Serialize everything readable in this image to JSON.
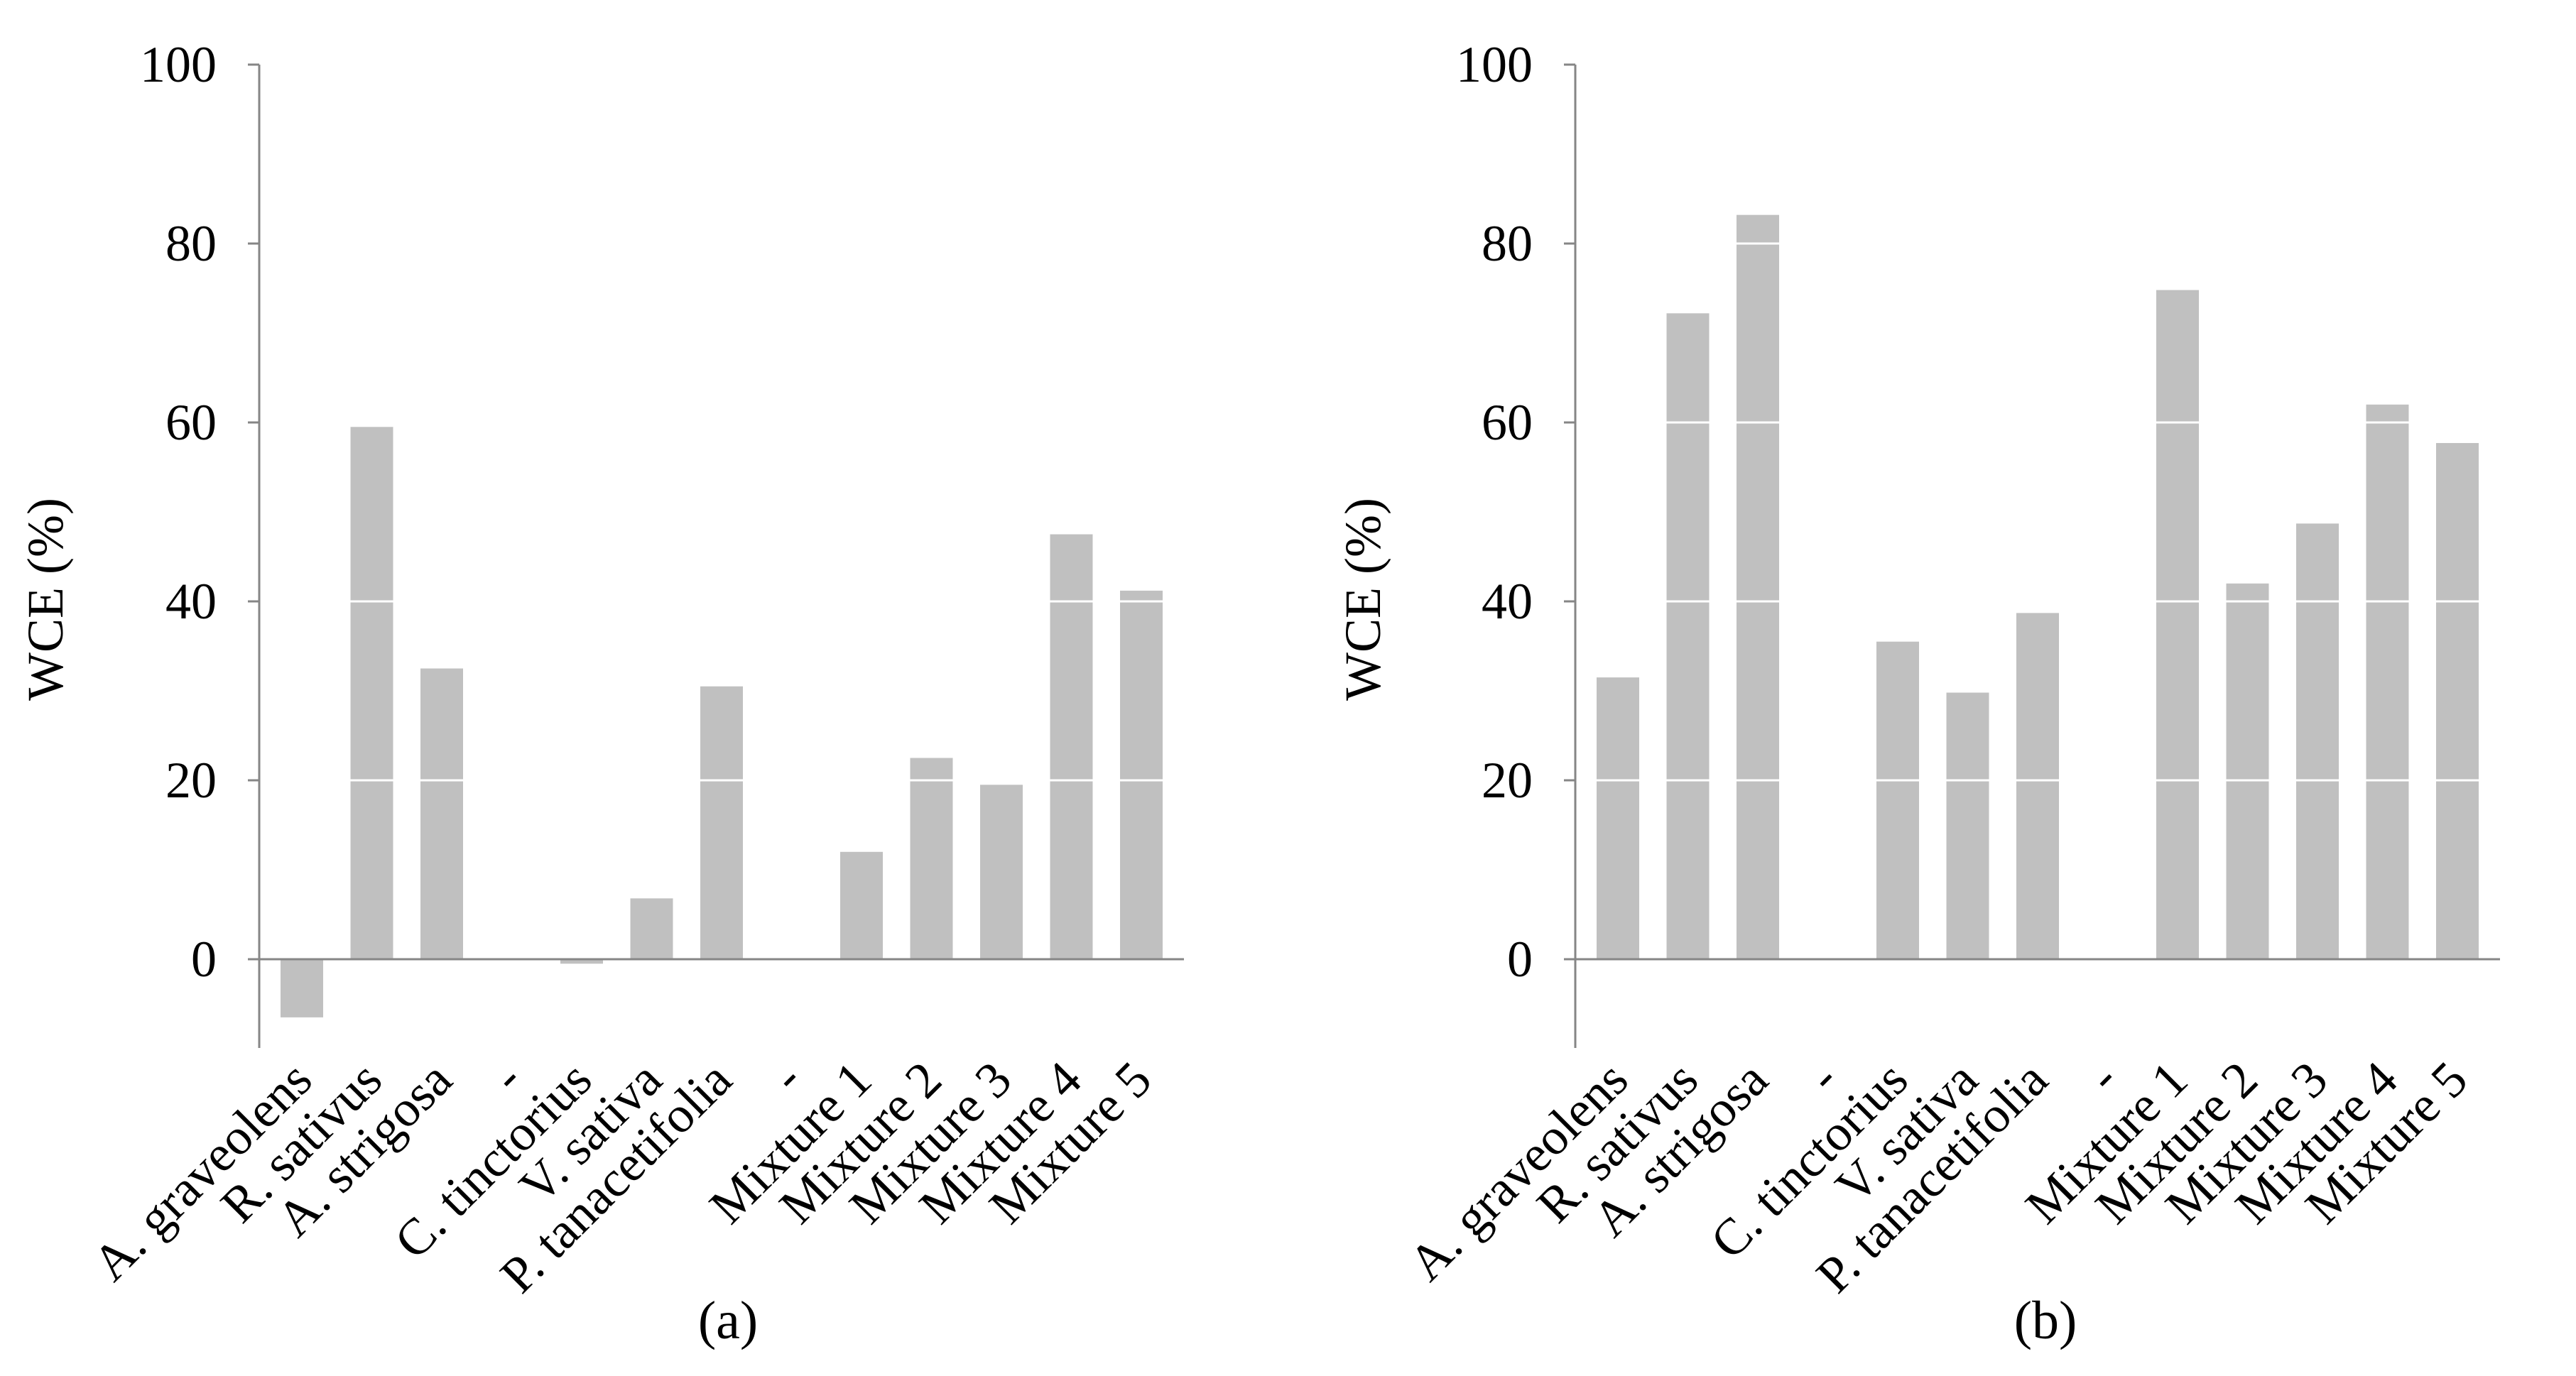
{
  "figure": {
    "bar_color": "#c0c0c0",
    "axis_color": "#868686",
    "gridline_color": "#ffffff"
  },
  "chart_data": [
    {
      "type": "bar",
      "panel_label": "(a)",
      "ylabel": "WCE (%)",
      "ylim": [
        -10,
        100
      ],
      "yticks": [
        "0",
        "20",
        "40",
        "60",
        "80",
        "100"
      ],
      "gridlines": "white lines drawn across bars at 20, 40, 60, 80",
      "categories": [
        "A. graveolens",
        "R. sativus",
        "A. strigosa",
        "-",
        "C. tinctorius",
        "V. sativa",
        "P. tanacetifolia",
        "-",
        "Mixture 1",
        "Mixture 2",
        "Mixture 3",
        "Mixture 4",
        "Mixture 5"
      ],
      "values": [
        -6.5,
        59.5,
        32.5,
        null,
        -0.5,
        6.8,
        30.5,
        null,
        12.0,
        22.5,
        19.5,
        47.5,
        41.2
      ]
    },
    {
      "type": "bar",
      "panel_label": "(b)",
      "ylabel": "WCE (%)",
      "ylim": [
        -10,
        100
      ],
      "yticks": [
        "0",
        "20",
        "40",
        "60",
        "80",
        "100"
      ],
      "gridlines": "white lines drawn across bars at 20, 40, 60, 80",
      "categories": [
        "A. graveolens",
        "R. sativus",
        "A. strigosa",
        "-",
        "C. tinctorius",
        "V. sativa",
        "P. tanacetifolia",
        "-",
        "Mixture 1",
        "Mixture 2",
        "Mixture 3",
        "Mixture 4",
        "Mixture 5"
      ],
      "values": [
        31.5,
        72.2,
        83.2,
        null,
        35.5,
        29.8,
        38.7,
        null,
        74.8,
        42.0,
        48.7,
        62.0,
        57.7
      ]
    }
  ]
}
